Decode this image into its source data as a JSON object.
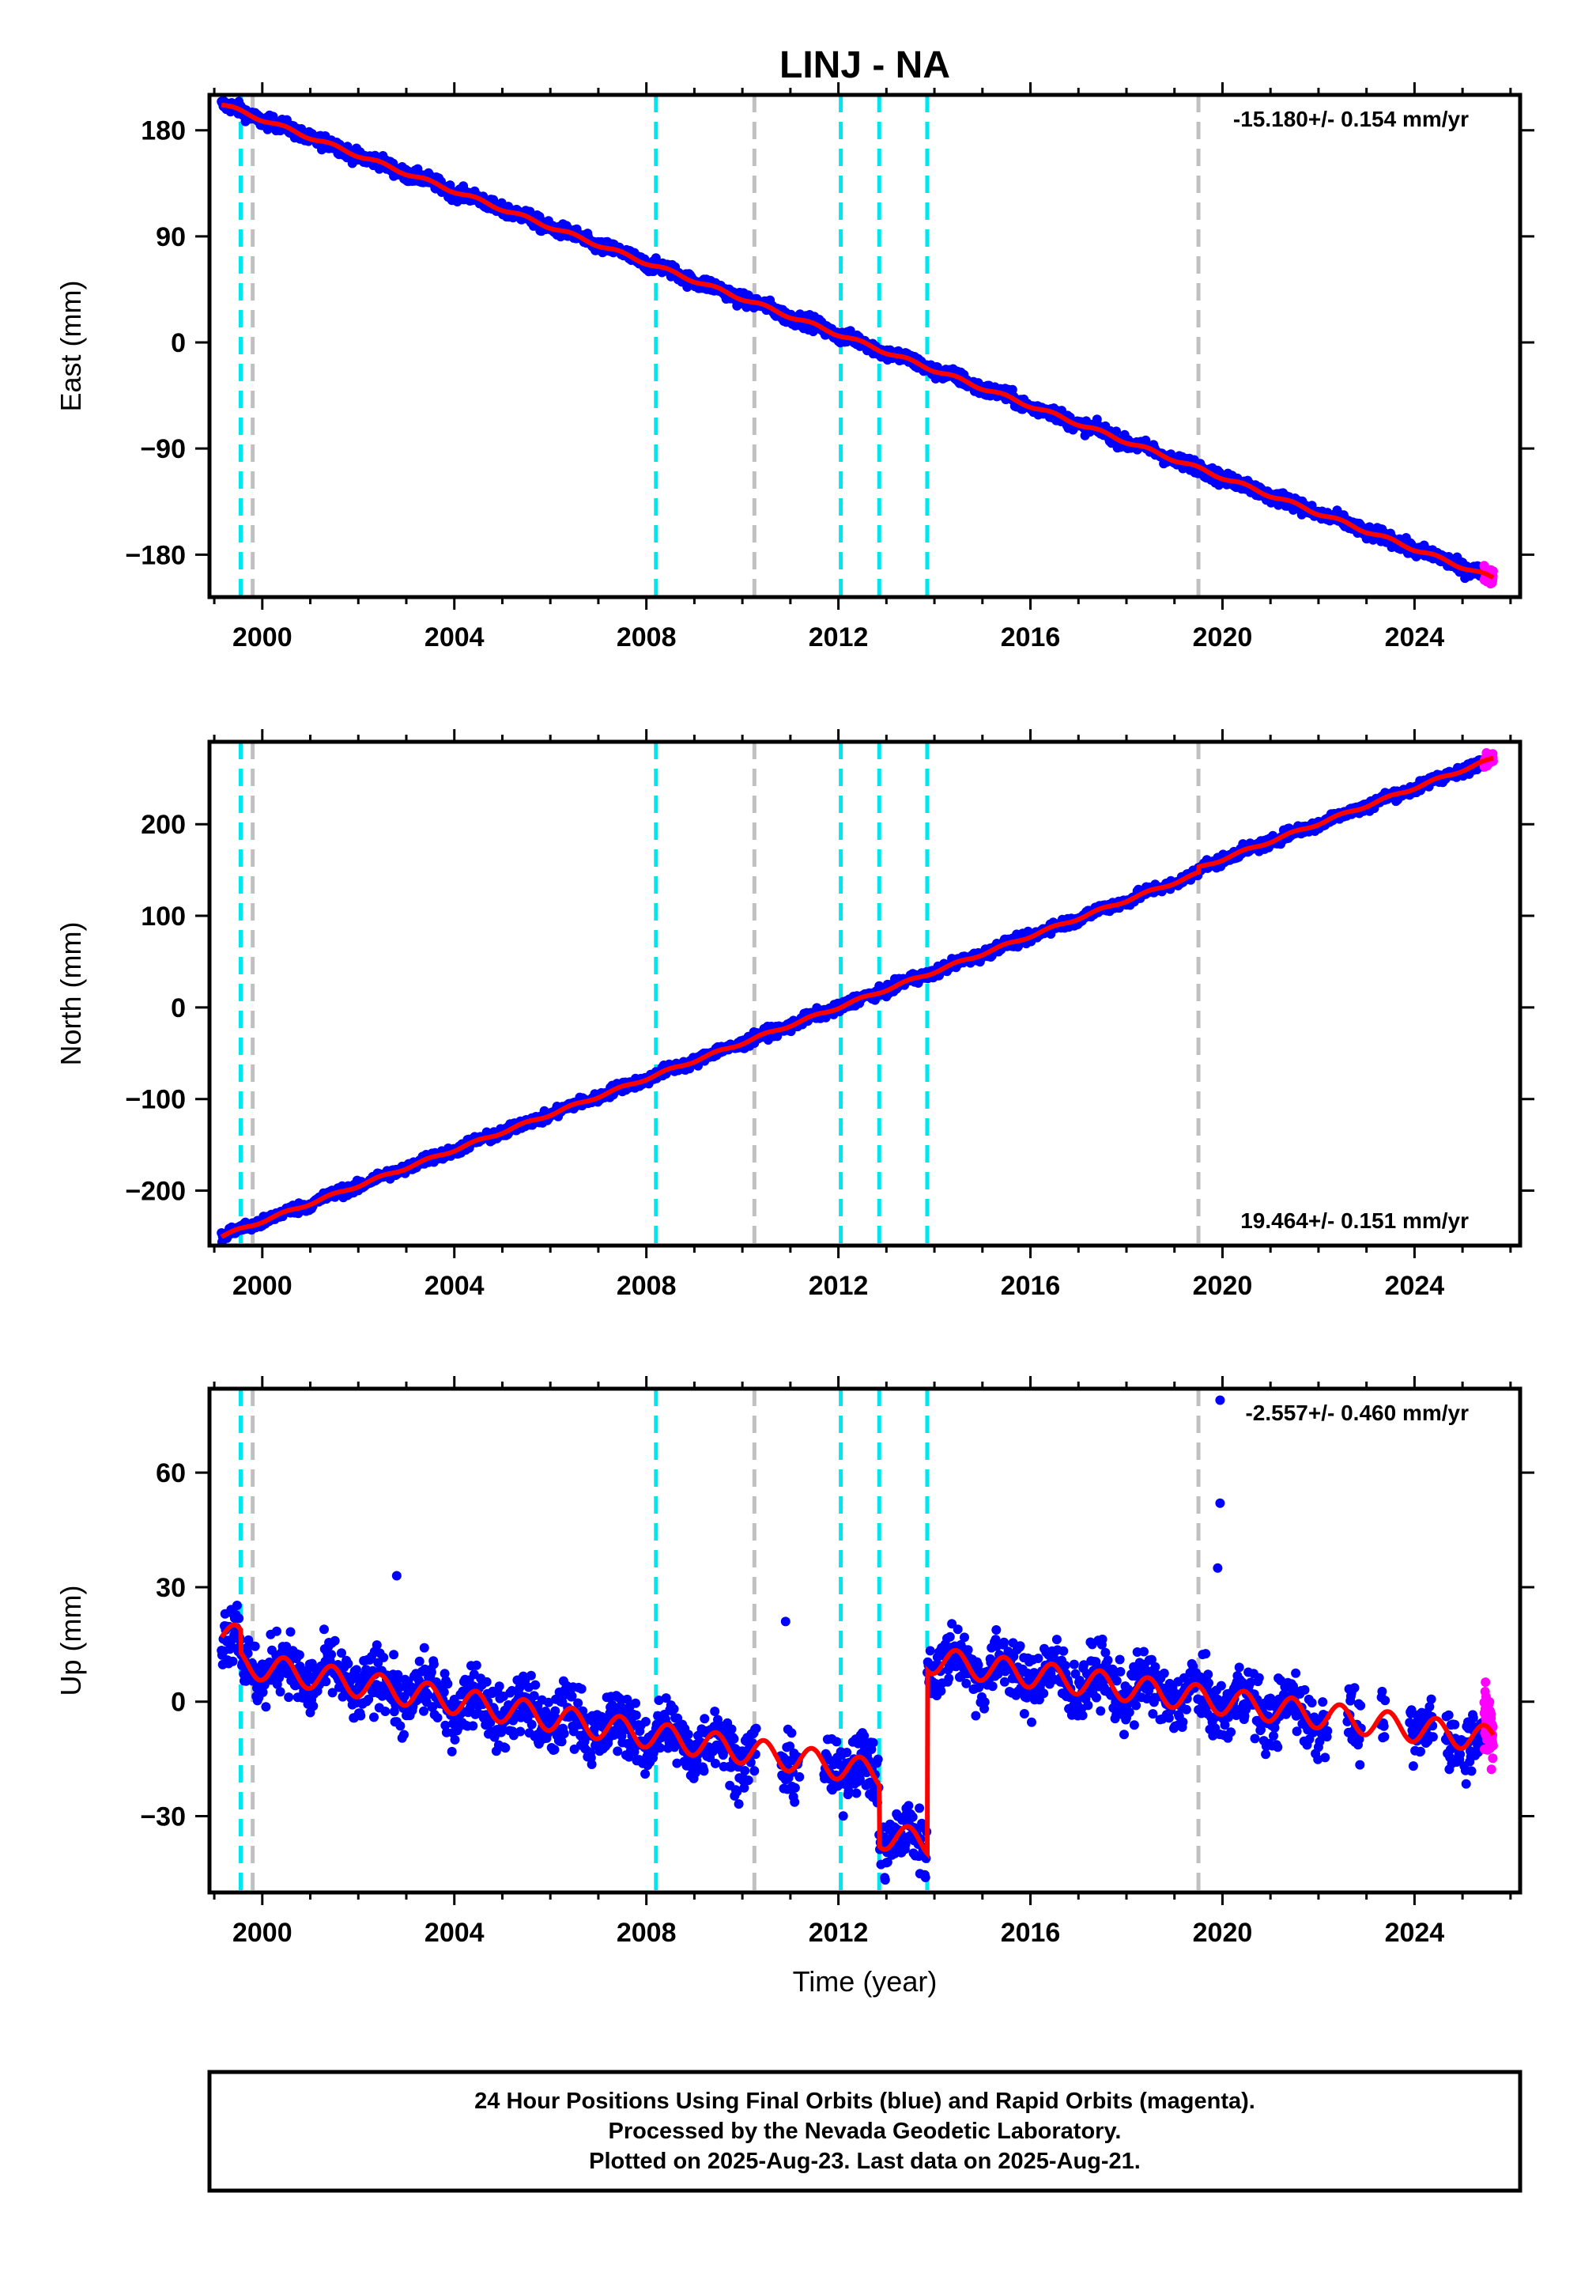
{
  "chart_data": {
    "type": "scatter",
    "title": "LINJ - NA",
    "xlabel": "Time (year)",
    "xlim": [
      1998.9,
      2026.2
    ],
    "x_ticks": [
      2000,
      2004,
      2008,
      2012,
      2016,
      2020,
      2024
    ],
    "x_tick_labels": [
      "2000",
      "2004",
      "2008",
      "2012",
      "2016",
      "2020",
      "2024"
    ],
    "data_start": 1999.15,
    "data_end": 2025.64,
    "rapid_start": 2025.45,
    "colors": {
      "final_orbits": "#0000ff",
      "rapid_orbits": "#ff00ff",
      "model": "#ff0000",
      "equipment_change": "#00e5ee",
      "other_event": "#c0c0c0",
      "frame": "#000000"
    },
    "vertical_lines": [
      {
        "x": 1999.55,
        "type": "equipment",
        "color": "#00e5ee"
      },
      {
        "x": 1999.8,
        "type": "other",
        "color": "#c0c0c0"
      },
      {
        "x": 2008.2,
        "type": "equipment",
        "color": "#00e5ee"
      },
      {
        "x": 2010.25,
        "type": "other",
        "color": "#c0c0c0"
      },
      {
        "x": 2012.05,
        "type": "equipment",
        "color": "#00e5ee"
      },
      {
        "x": 2012.85,
        "type": "equipment",
        "color": "#00e5ee"
      },
      {
        "x": 2013.85,
        "type": "equipment",
        "color": "#00e5ee"
      },
      {
        "x": 2019.5,
        "type": "other",
        "color": "#c0c0c0"
      }
    ],
    "panels": [
      {
        "id": "east",
        "ylabel": "East (mm)",
        "ylim": [
          -216,
          210
        ],
        "y_ticks": [
          180,
          90,
          0,
          -90,
          -180
        ],
        "y_tick_labels": [
          "180",
          "90",
          "0",
          "−90",
          "−180"
        ],
        "rate_label": "-15.180+/- 0.154 mm/yr",
        "rate_position": "top-right",
        "slope": -15.18,
        "intercept_at_2011": 15,
        "start_value": 202,
        "seasonal_amplitude": 1.5,
        "scatter": 3.5,
        "outliers": [],
        "offsets": []
      },
      {
        "id": "north",
        "ylabel": "North (mm)",
        "ylim": [
          -260,
          290
        ],
        "y_ticks": [
          200,
          100,
          0,
          -100,
          -200
        ],
        "y_tick_labels": [
          "200",
          "100",
          "0",
          "−100",
          "−200"
        ],
        "rate_label": "19.464+/- 0.151 mm/yr",
        "rate_position": "bottom-right",
        "slope": 19.464,
        "intercept_at_2011": -18,
        "start_value": -250,
        "seasonal_amplitude": 1.5,
        "scatter": 3.5,
        "outliers": [],
        "offsets": [
          {
            "x": 2019.5,
            "dy": 6
          }
        ]
      },
      {
        "id": "up",
        "ylabel": "Up (mm)",
        "ylim": [
          -50,
          82
        ],
        "y_ticks": [
          60,
          30,
          0,
          -30
        ],
        "y_tick_labels": [
          "60",
          "30",
          "0",
          "−30"
        ],
        "rate_label": "-2.557+/- 0.460 mm/yr",
        "rate_position": "top-right",
        "seasonal_amplitude": 3.5,
        "scatter": 5,
        "model_segments": [
          {
            "start": 1999.15,
            "end": 1999.55,
            "base_start": 18,
            "base_end": 16
          },
          {
            "start": 1999.55,
            "end": 2008.2,
            "base_start": 10,
            "base_end": -9
          },
          {
            "start": 2008.2,
            "end": 2012.05,
            "base_start": -9,
            "base_end": -17
          },
          {
            "start": 2012.05,
            "end": 2012.85,
            "base_start": -17,
            "base_end": -19
          },
          {
            "start": 2012.85,
            "end": 2013.85,
            "base_start": -35,
            "base_end": -37
          },
          {
            "start": 2013.85,
            "end": 2025.64,
            "base_start": 11,
            "base_end": -10
          }
        ],
        "data_gaps": [
          [
            2010.3,
            2010.8
          ],
          [
            2011.2,
            2011.7
          ],
          [
            2022.2,
            2022.6
          ],
          [
            2022.9,
            2023.3
          ],
          [
            2023.4,
            2023.9
          ],
          [
            2024.4,
            2024.65
          ]
        ],
        "outliers": [
          {
            "x": 2019.95,
            "y": 79
          },
          {
            "x": 2019.95,
            "y": 52
          },
          {
            "x": 2019.9,
            "y": 35
          },
          {
            "x": 2010.9,
            "y": 21
          },
          {
            "x": 2002.8,
            "y": 33
          },
          {
            "x": 1999.3,
            "y": 10
          }
        ]
      }
    ]
  },
  "footer": {
    "line1": "24 Hour Positions Using Final Orbits (blue) and Rapid Orbits (magenta).",
    "line2": "Processed by the Nevada Geodetic Laboratory.",
    "line3": "Plotted on 2025-Aug-23. Last data on 2025-Aug-21."
  }
}
